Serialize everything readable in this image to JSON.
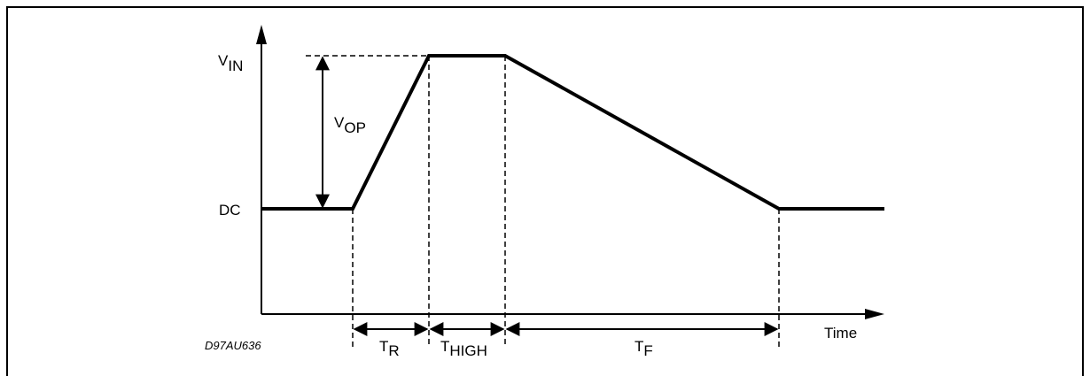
{
  "diagram": {
    "y_axis": {
      "top_label": "V",
      "top_label_sub": "IN",
      "bottom_label": "DC"
    },
    "x_axis": {
      "label": "Time"
    },
    "amplitude": {
      "label": "V",
      "label_sub": "OP"
    },
    "intervals": [
      {
        "label": "T",
        "sub": "R"
      },
      {
        "label": "T",
        "sub": "HIGH"
      },
      {
        "label": "T",
        "sub": "F"
      }
    ],
    "figure_code": "D97AU636"
  },
  "colors": {
    "line": "#000000",
    "background": "#ffffff"
  }
}
